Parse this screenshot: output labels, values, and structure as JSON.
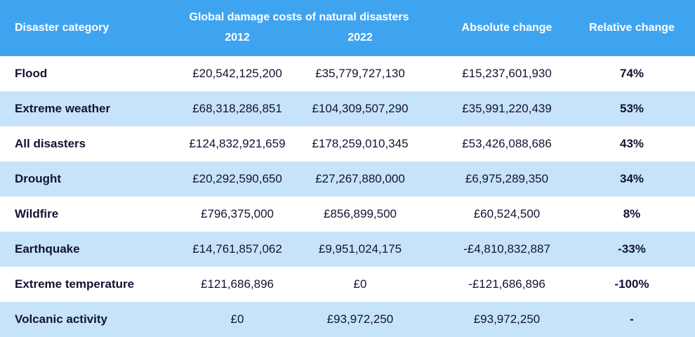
{
  "header": {
    "category": "Disaster category",
    "group": "Global damage costs of natural disasters",
    "year_a": "2012",
    "year_b": "2022",
    "absolute": "Absolute change",
    "relative": "Relative change"
  },
  "colors": {
    "header_bg": "#3fa4ef",
    "stripe": "#c7e3f9",
    "text": "#121433"
  },
  "chart_data": {
    "type": "table",
    "columns": [
      "Disaster category",
      "2012",
      "2022",
      "Absolute change",
      "Relative change"
    ],
    "rows": [
      [
        "Flood",
        "£20,542,125,200",
        "£35,779,727,130",
        "£15,237,601,930",
        "74%"
      ],
      [
        "Extreme weather",
        "£68,318,286,851",
        "£104,309,507,290",
        "£35,991,220,439",
        "53%"
      ],
      [
        "All disasters",
        "£124,832,921,659",
        "£178,259,010,345",
        "£53,426,088,686",
        "43%"
      ],
      [
        "Drought",
        "£20,292,590,650",
        "£27,267,880,000",
        "£6,975,289,350",
        "34%"
      ],
      [
        "Wildfire",
        "£796,375,000",
        "£856,899,500",
        "£60,524,500",
        "8%"
      ],
      [
        "Earthquake",
        "£14,761,857,062",
        "£9,951,024,175",
        "-£4,810,832,887",
        "-33%"
      ],
      [
        "Extreme temperature",
        "£121,686,896",
        "£0",
        "-£121,686,896",
        "-100%"
      ],
      [
        "Volcanic activity",
        "£0",
        "£93,972,250",
        "£93,972,250",
        "-"
      ]
    ]
  }
}
